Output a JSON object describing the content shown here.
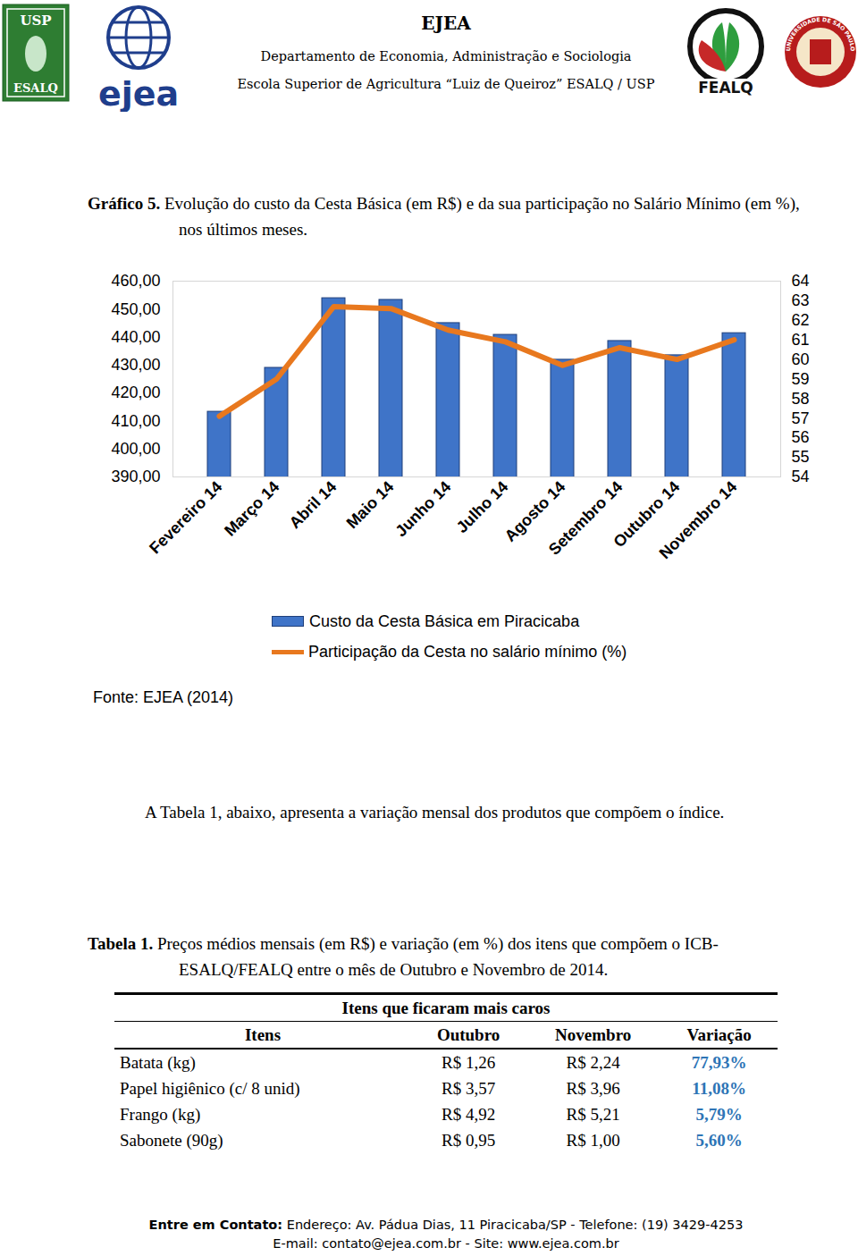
{
  "header": {
    "title": "EJEA",
    "lines": [
      "Departamento de Economia, Administração e Sociologia",
      "Escola Superior de Agricultura “Luiz de Queiroz”  ESALQ / USP"
    ],
    "logos": [
      "USP",
      "ESALQ",
      "ejea",
      "FEALQ",
      "UNIVERSIDADE DE SÃO PAULO"
    ]
  },
  "figure": {
    "label": "Gráfico 5.",
    "caption": "Evolução do custo da Cesta Básica (em R$) e da sua participação no Salário Mínimo (em %), nos últimos meses.",
    "source": "Fonte: EJEA (2014)"
  },
  "chart_data": {
    "type": "bar",
    "categories": [
      "Fevereiro 14",
      "Março 14",
      "Abril 14",
      "Maio 14",
      "Junho 14",
      "Julho 14",
      "Agosto 14",
      "Setembro 14",
      "Outubro 14",
      "Novembro 14"
    ],
    "series": [
      {
        "name": "Custo da Cesta Básica em Piracicaba",
        "type": "bar",
        "color": "#3f74c8",
        "values": [
          413.3,
          429.0,
          453.9,
          453.3,
          445.0,
          440.8,
          431.9,
          438.6,
          433.5,
          441.4
        ]
      },
      {
        "name": "Participação da Cesta no salário mínimo (%)",
        "type": "line",
        "axis": "y2",
        "color": "#e8781e",
        "values": [
          57.1,
          59.0,
          62.7,
          62.6,
          61.5,
          60.9,
          59.7,
          60.6,
          60.0,
          61.0
        ]
      }
    ],
    "ylim": [
      390,
      460
    ],
    "yticks": [
      {
        "value": 390,
        "label": "390,00"
      },
      {
        "value": 400,
        "label": "400,00"
      },
      {
        "value": 410,
        "label": "410,00"
      },
      {
        "value": 420,
        "label": "420,00"
      },
      {
        "value": 430,
        "label": "430,00"
      },
      {
        "value": 440,
        "label": "440,00"
      },
      {
        "value": 450,
        "label": "450,00"
      },
      {
        "value": 460,
        "label": "460,00"
      }
    ],
    "y2lim": [
      54,
      64
    ],
    "y2ticks": [
      54,
      55,
      56,
      57,
      58,
      59,
      60,
      61,
      62,
      63,
      64
    ],
    "legend": "bottom",
    "grid": false
  },
  "paragraph": "A Tabela 1, abaixo, apresenta a variação mensal dos produtos que compõem o índice.",
  "table": {
    "label": "Tabela 1.",
    "caption": "Preços médios mensais (em R$) e variação (em %) dos itens que compõem o ICB-ESALQ/FEALQ entre o mês de Outubro e Novembro de 2014.",
    "group": "Itens que ficaram mais caros",
    "header": [
      "Itens",
      "Outubro",
      "Novembro",
      "Variação"
    ],
    "rows": [
      [
        "Batata (kg)",
        "R$ 1,26",
        "R$ 2,24",
        "77,93%"
      ],
      [
        "Papel higiênico (c/ 8 unid)",
        "R$ 3,57",
        "R$ 3,96",
        "11,08%"
      ],
      [
        "Frango (kg)",
        "R$ 4,92",
        "R$ 5,21",
        "5,79%"
      ],
      [
        "Sabonete (90g)",
        "R$ 0,95",
        "R$ 1,00",
        "5,60%"
      ]
    ]
  },
  "footer": {
    "contact_label": "Entre em Contato:",
    "contact": "Endereço: Av. Pádua Dias, 11 Piracicaba/SP - Telefone: (19) 3429-4253",
    "line2": "E-mail: contato@ejea.com.br - Site: www.ejea.com.br"
  }
}
